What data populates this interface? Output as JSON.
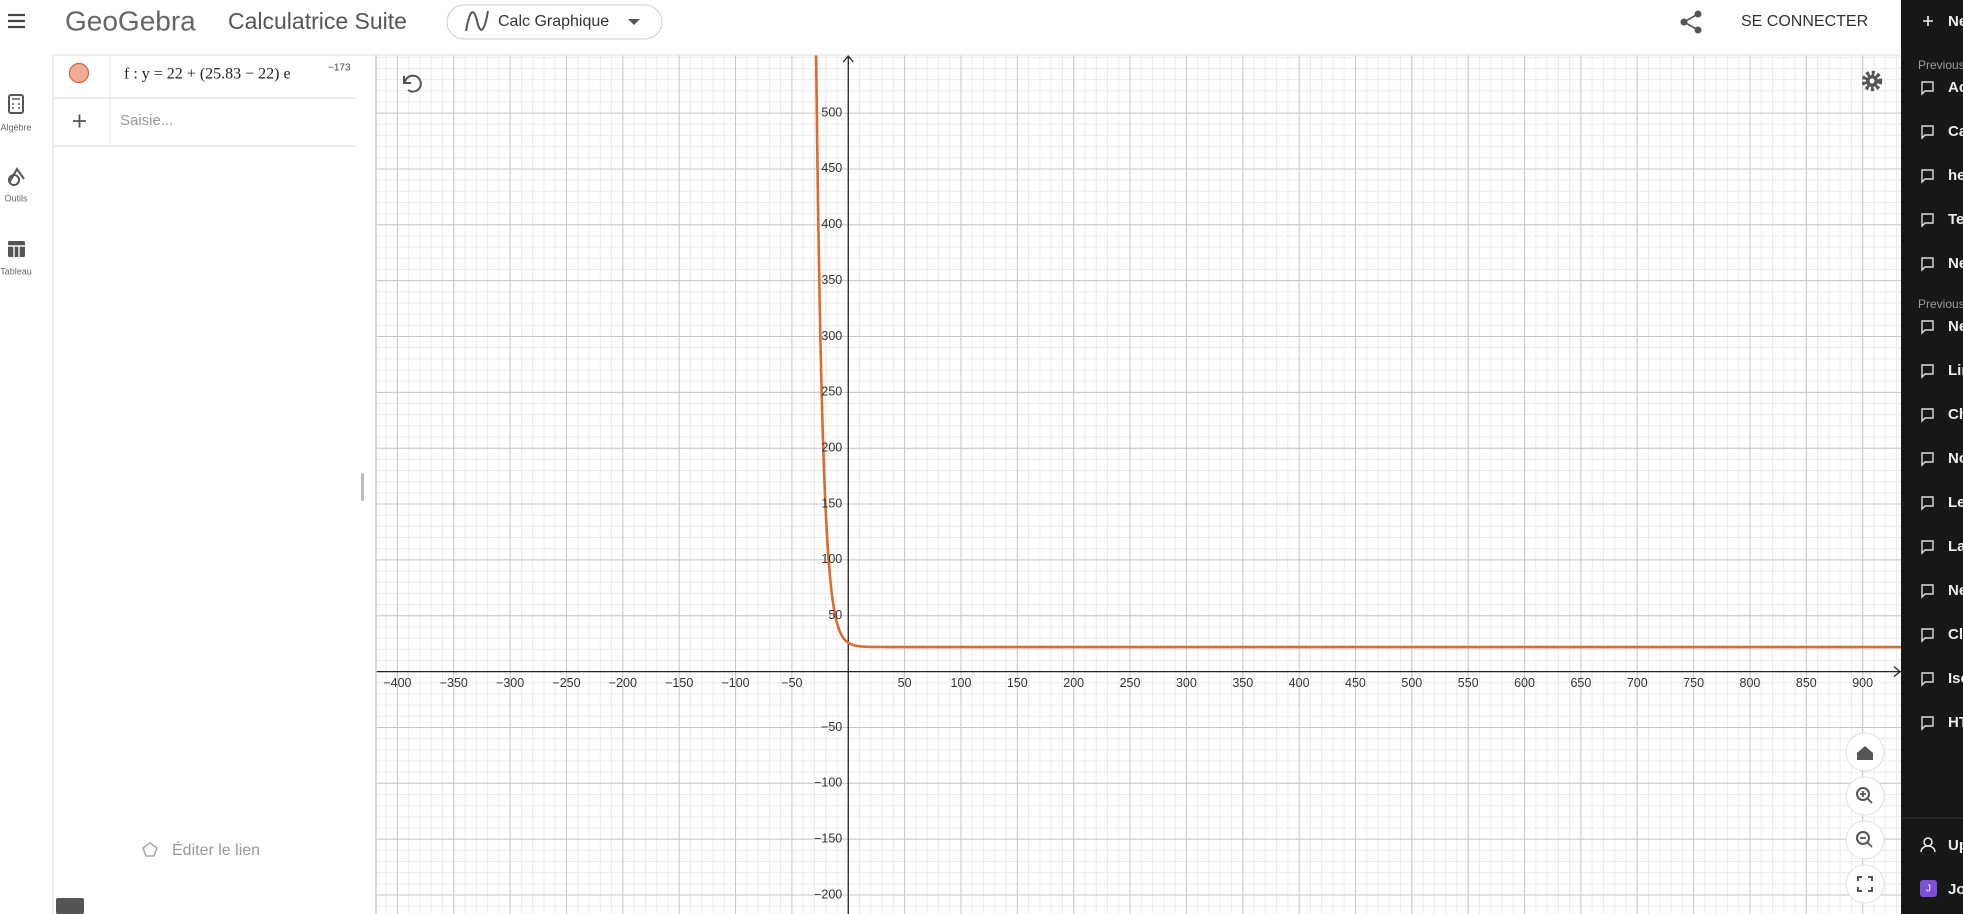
{
  "header": {
    "logo": "GeoGebra",
    "app_title": "Calculatrice Suite",
    "app_switcher": "Calc Graphique",
    "sign_in": "SE CONNECTER"
  },
  "sidebar": {
    "items": [
      "Algèbre",
      "Outils",
      "Tableau"
    ]
  },
  "algebra": {
    "items": [
      {
        "label": "f : y = 22 + (25.83 − 22) e",
        "exponent": "−173"
      }
    ],
    "input_placeholder": "Saisie...",
    "edit_link": "Éditer le lien"
  },
  "graph": {
    "xlim": [
      -419,
      934
    ],
    "ylim": [
      -217,
      552
    ],
    "xticks": [
      {
        "value": -400,
        "label": "−400"
      },
      {
        "value": -350,
        "label": "−350"
      },
      {
        "value": -300,
        "label": "−300"
      },
      {
        "value": -250,
        "label": "−250"
      },
      {
        "value": -200,
        "label": "−200"
      },
      {
        "value": -150,
        "label": "−150"
      },
      {
        "value": -100,
        "label": "−100"
      },
      {
        "value": -50,
        "label": "−50"
      },
      50,
      100,
      150,
      200,
      250,
      300,
      350,
      400,
      450,
      500,
      550,
      600,
      650,
      700,
      750,
      800,
      850,
      900
    ],
    "yticks": [
      {
        "value": -200,
        "label": "−200"
      },
      {
        "value": -150,
        "label": "−150"
      },
      {
        "value": -100,
        "label": "−100"
      },
      {
        "value": -50,
        "label": "−50"
      },
      50,
      100,
      150,
      200,
      250,
      300,
      350,
      400,
      450,
      500
    ],
    "grid": true,
    "function": {
      "asymptote": 22,
      "initial": 25.83,
      "rate": 0.173,
      "color": "#dc6b2f"
    }
  },
  "history": {
    "new_chat": "Ne",
    "sections": [
      {
        "title": "Previous",
        "items": [
          "Ac",
          "Ca",
          "he",
          "Te",
          "Ne"
        ]
      },
      {
        "title": "Previous",
        "items": [
          "Ne",
          "Lin",
          "Ch",
          "No",
          "Le",
          "La",
          "Ne",
          "Cl",
          "Iso",
          "HT"
        ]
      }
    ],
    "upgrade": "Up",
    "user_initial": "J",
    "user": "Jo"
  }
}
